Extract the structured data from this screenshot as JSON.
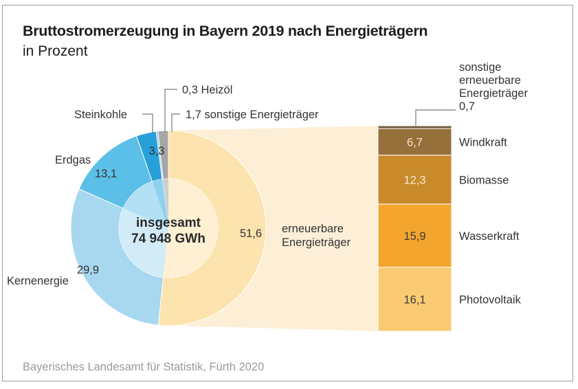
{
  "chart_data": {
    "type": "pie",
    "title": "Bruttostromerzeugung in Bayern 2019 nach Energieträgern",
    "subtitle": "in Prozent",
    "unit": "Prozent",
    "center_label": [
      "insgesamt",
      "74 948 GWh"
    ],
    "total": {
      "value": 74948,
      "unit": "GWh"
    },
    "source": "Bayerisches Landesamt für Statistik, Fürth 2020",
    "slices": [
      {
        "name": "erneuerbare Energieträger",
        "label_lines": [
          "erneuerbare",
          "Energieträger"
        ],
        "value": 51.6,
        "value_label": "51,6",
        "color": "#fde3ad",
        "inner_color": "#fff0d4"
      },
      {
        "name": "Kernenergie",
        "label_lines": [
          "Kernenergie"
        ],
        "value": 29.9,
        "value_label": "29,9",
        "color": "#a7d8ef",
        "inner_color": "#d2ecf7"
      },
      {
        "name": "Erdgas",
        "label_lines": [
          "Erdgas"
        ],
        "value": 13.1,
        "value_label": "13,1",
        "color": "#5bbfe7",
        "inner_color": "#b3e0f4"
      },
      {
        "name": "Steinkohle",
        "label_lines": [
          "Steinkohle"
        ],
        "value": 3.3,
        "value_label": "3,3",
        "color": "#279fd9",
        "inner_color": "#8fd0ef"
      },
      {
        "name": "Heizöl",
        "label_lines": [
          "0,3 Heizöl"
        ],
        "value": 0.3,
        "value_label": "0,3",
        "color": "#7fcdea",
        "inner_color": "#c5e7f5"
      },
      {
        "name": "sonstige Energieträger",
        "label_lines": [
          "1,7 sonstige Energieträger"
        ],
        "value": 1.7,
        "value_label": "1,7",
        "color": "#a6a6a6",
        "inner_color": "#cfcfcf"
      }
    ],
    "breakdown": {
      "of": "erneuerbare Energieträger",
      "type": "stacked-bar",
      "segments": [
        {
          "name": "sonstige erneuerbare Energieträger",
          "label_lines": [
            "sonstige",
            "erneuerbare",
            "Energieträger",
            "0,7"
          ],
          "value": 0.7,
          "value_label": "0,7",
          "color": "#6e5a3a"
        },
        {
          "name": "Windkraft",
          "label_lines": [
            "Windkraft"
          ],
          "value": 6.7,
          "value_label": "6,7",
          "color": "#96703a",
          "text_color": "#f3e6cc"
        },
        {
          "name": "Biomasse",
          "label_lines": [
            "Biomasse"
          ],
          "value": 12.3,
          "value_label": "12,3",
          "color": "#c98a2a",
          "text_color": "#f7ead2"
        },
        {
          "name": "Wasserkraft",
          "label_lines": [
            "Wasserkraft"
          ],
          "value": 15.9,
          "value_label": "15,9",
          "color": "#f4a52e",
          "text_color": "#3a3a3a"
        },
        {
          "name": "Photovoltaik",
          "label_lines": [
            "Photovoltaik"
          ],
          "value": 16.1,
          "value_label": "16,1",
          "color": "#fbcb73",
          "text_color": "#3a3a3a"
        }
      ]
    },
    "connector_color": "#fdefd6",
    "leader_line_color": "#777777"
  }
}
